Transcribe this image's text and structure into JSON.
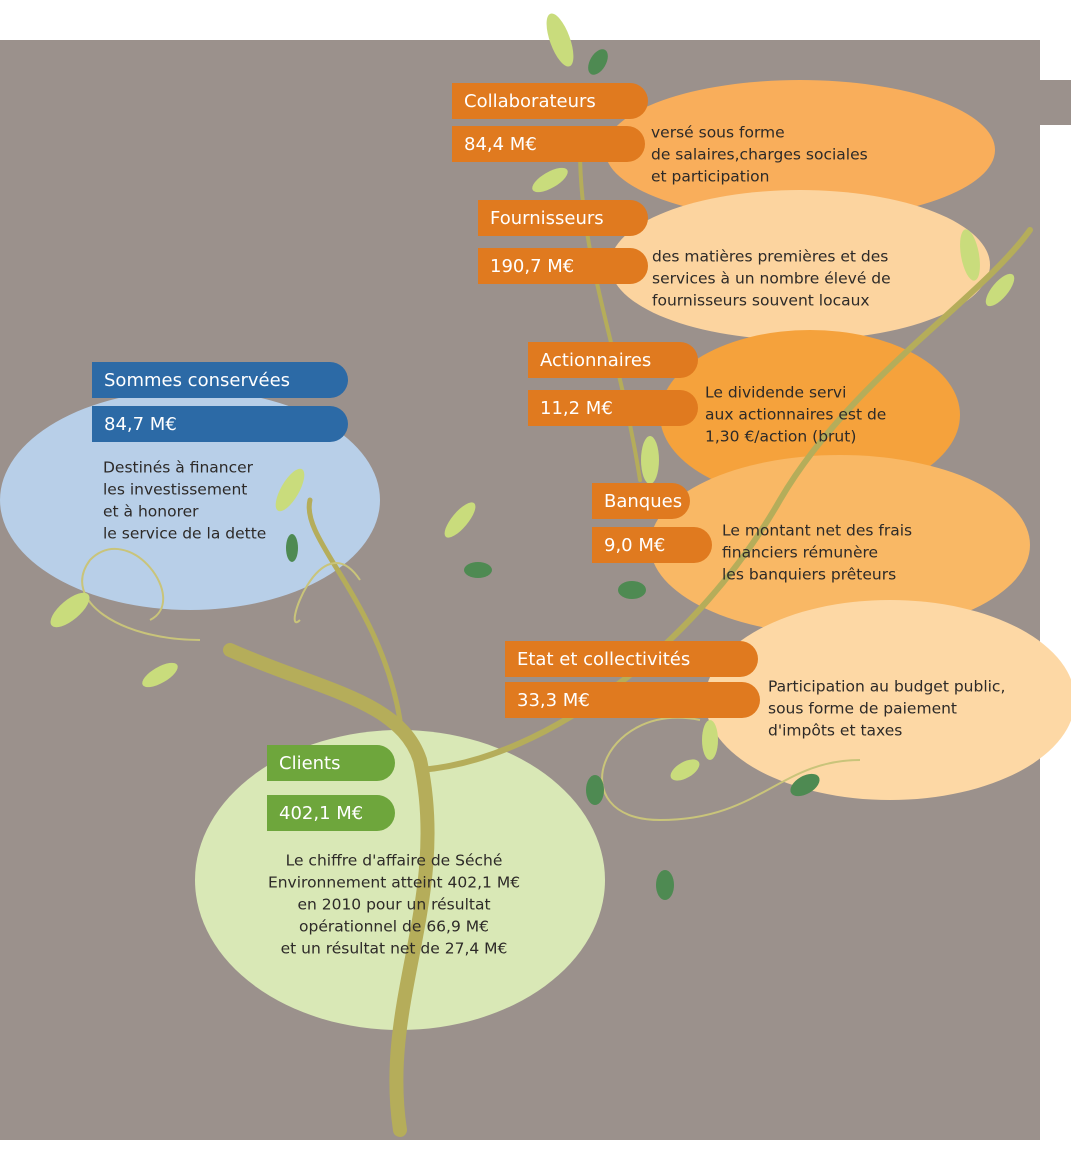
{
  "nodes": [
    {
      "label": "Collaborateurs",
      "amount": "84,4 M€",
      "description": [
        "versé sous forme",
        "de salaires,charges sociales",
        "et participation"
      ]
    },
    {
      "label": "Fournisseurs",
      "amount": "190,7 M€",
      "description": [
        "des matières premières et des",
        "services à un nombre élevé de",
        "fournisseurs souvent locaux"
      ]
    },
    {
      "label": "Actionnaires",
      "amount": "11,2 M€",
      "description": [
        "Le dividende servi",
        "aux actionnaires est de",
        "1,30 €/action (brut)"
      ]
    },
    {
      "label": "Banques",
      "amount": "9,0 M€",
      "description": [
        "Le montant net des frais",
        "financiers rémunère",
        "les banquiers prêteurs"
      ]
    },
    {
      "label": "Etat et collectivités",
      "amount": "33,3 M€",
      "description": [
        "Participation au budget public,",
        "sous forme de paiement",
        "d'impôts et taxes"
      ]
    },
    {
      "label": "Sommes conservées",
      "amount": "84,7 M€",
      "description": [
        "Destinés à financer",
        "les investissement",
        "et à honorer",
        "le service de la dette"
      ]
    },
    {
      "label": "Clients",
      "amount": "402,1 M€",
      "description": [
        "Le chiffre d'affaire de Séché",
        "Environnement atteint 402,1 M€",
        "en 2010 pour un résultat",
        "opérationnel de 66,9 M€",
        "et un résultat net de 27,4 M€"
      ]
    }
  ]
}
